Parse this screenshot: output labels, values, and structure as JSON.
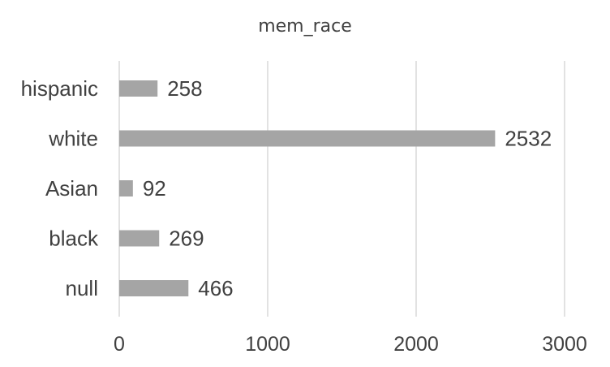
{
  "chart_data": {
    "type": "bar",
    "orientation": "horizontal",
    "title": "mem_race",
    "xlabel": "",
    "ylabel": "",
    "categories": [
      "hispanic",
      "white",
      "Asian",
      "black",
      "null"
    ],
    "values": [
      258,
      2532,
      92,
      269,
      466
    ],
    "xlim": [
      0,
      3000
    ],
    "xticks": [
      0,
      1000,
      2000,
      3000
    ],
    "grid": true,
    "legend": "none",
    "data_labels": true,
    "colors": {
      "bar": "#a5a5a5",
      "grid": "#d9d9d9",
      "text": "#404040"
    }
  }
}
